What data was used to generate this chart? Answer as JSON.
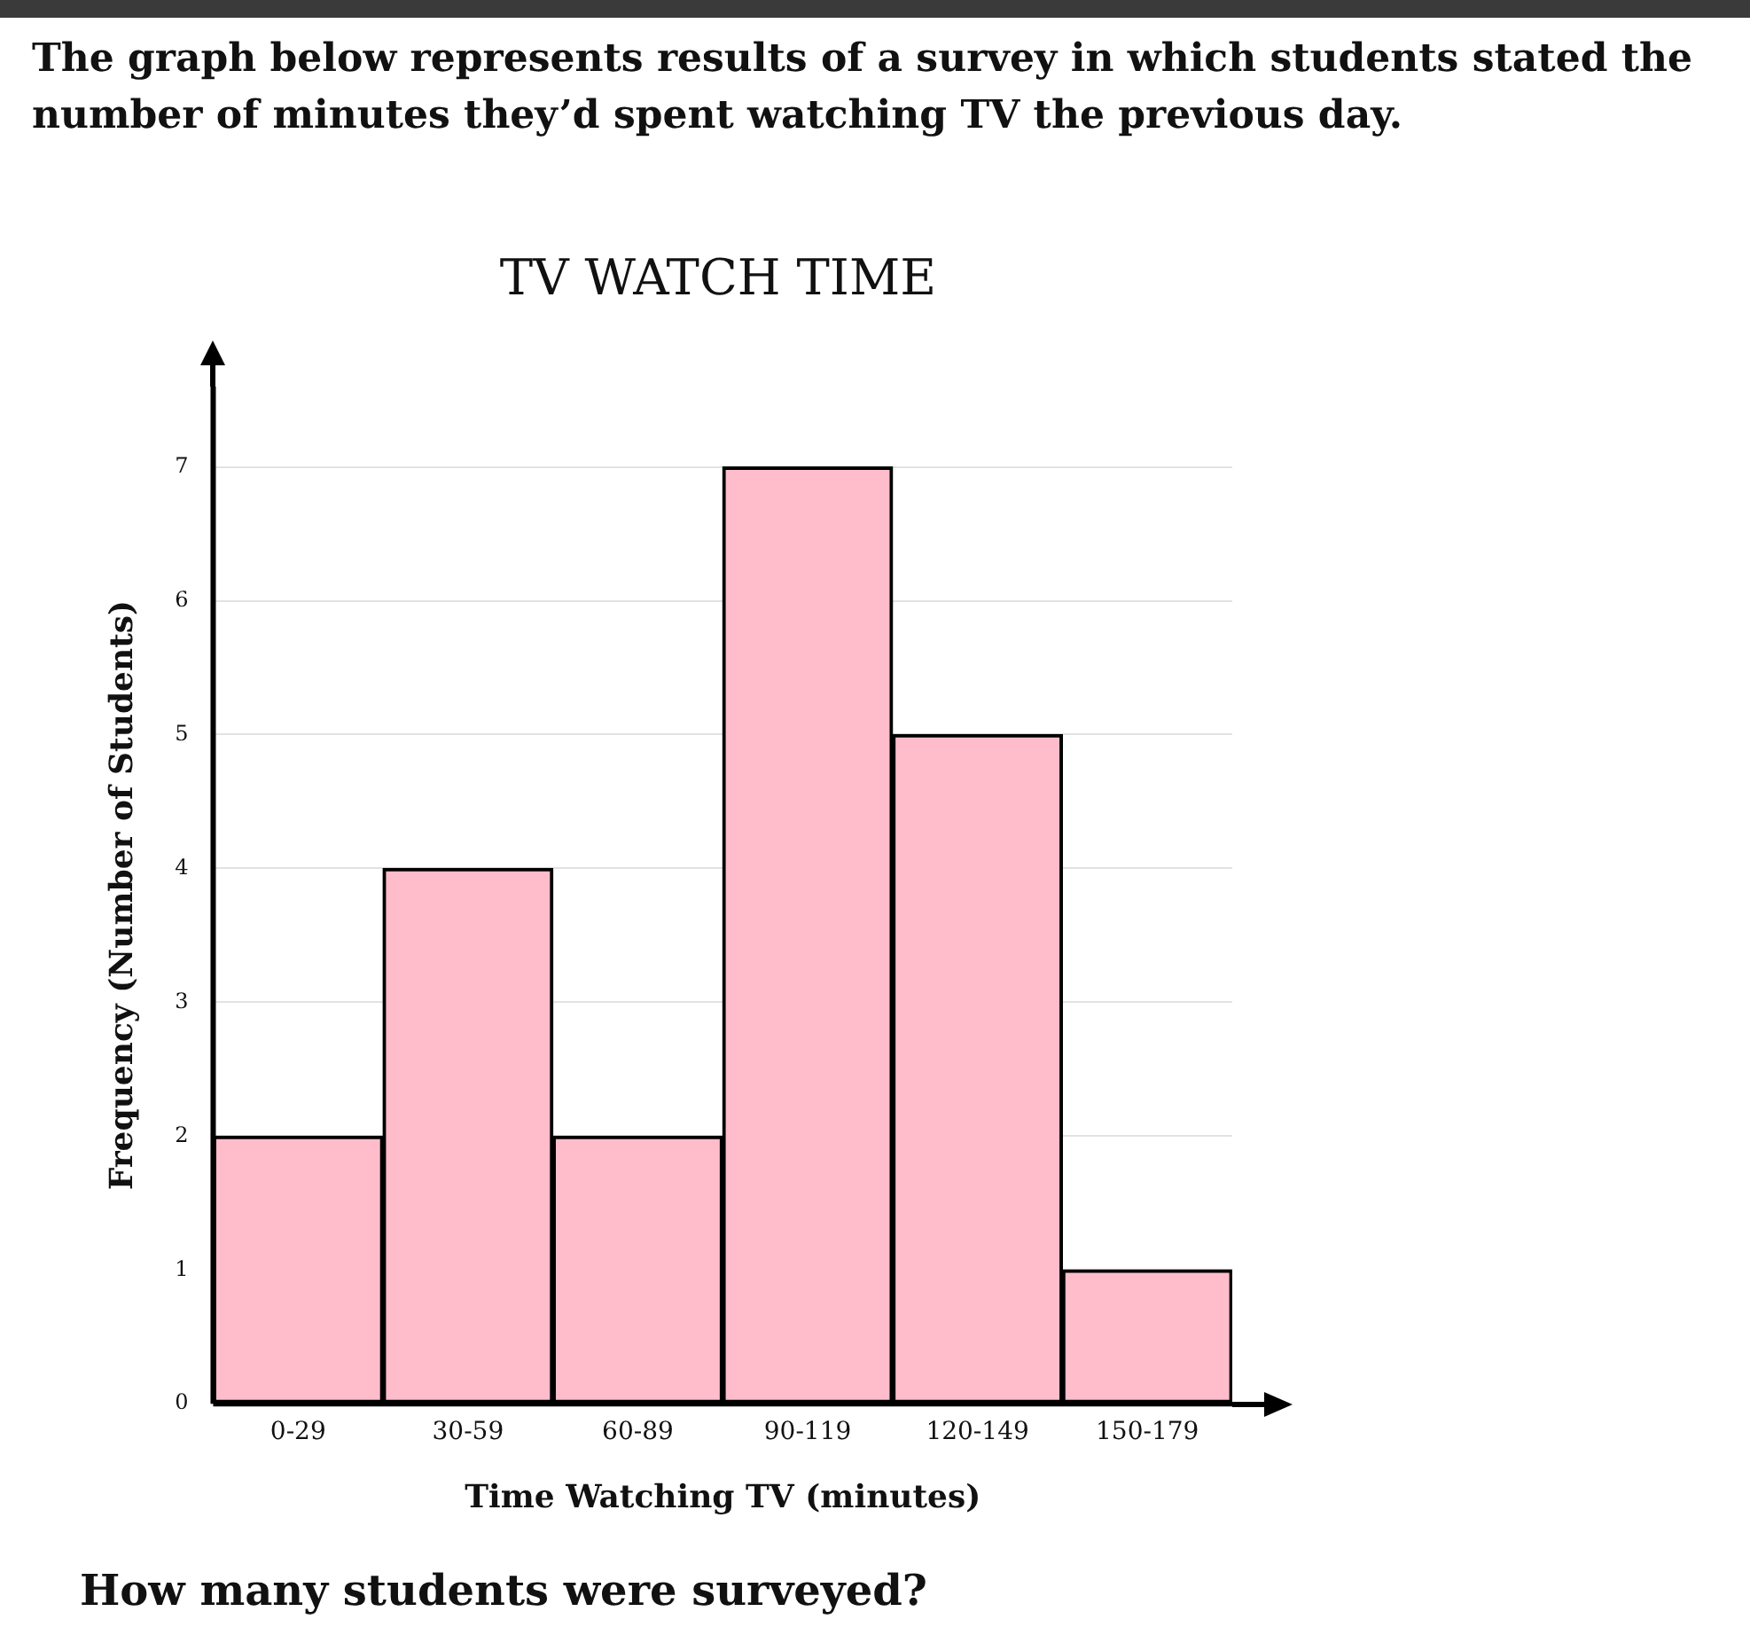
{
  "chart_data": {
    "type": "bar",
    "title": "TV WATCH TIME",
    "xlabel": "Time Watching TV (minutes)",
    "ylabel": "Frequency (Number of Students)",
    "annotations": [
      "The graph below represents results of a survey in which students stated the number of minutes they’d spent watching TV the previous day.",
      "How many students were surveyed?"
    ],
    "categories": [
      "0-29",
      "30-59",
      "60-89",
      "90-119",
      "120-149",
      "150-179"
    ],
    "values": [
      2,
      4,
      2,
      7,
      5,
      1
    ],
    "color": "#ffbccb",
    "ylim": [
      0,
      7.6
    ],
    "yticks": [
      0,
      1,
      2,
      3,
      4,
      5,
      6,
      7
    ],
    "grid": "y"
  }
}
